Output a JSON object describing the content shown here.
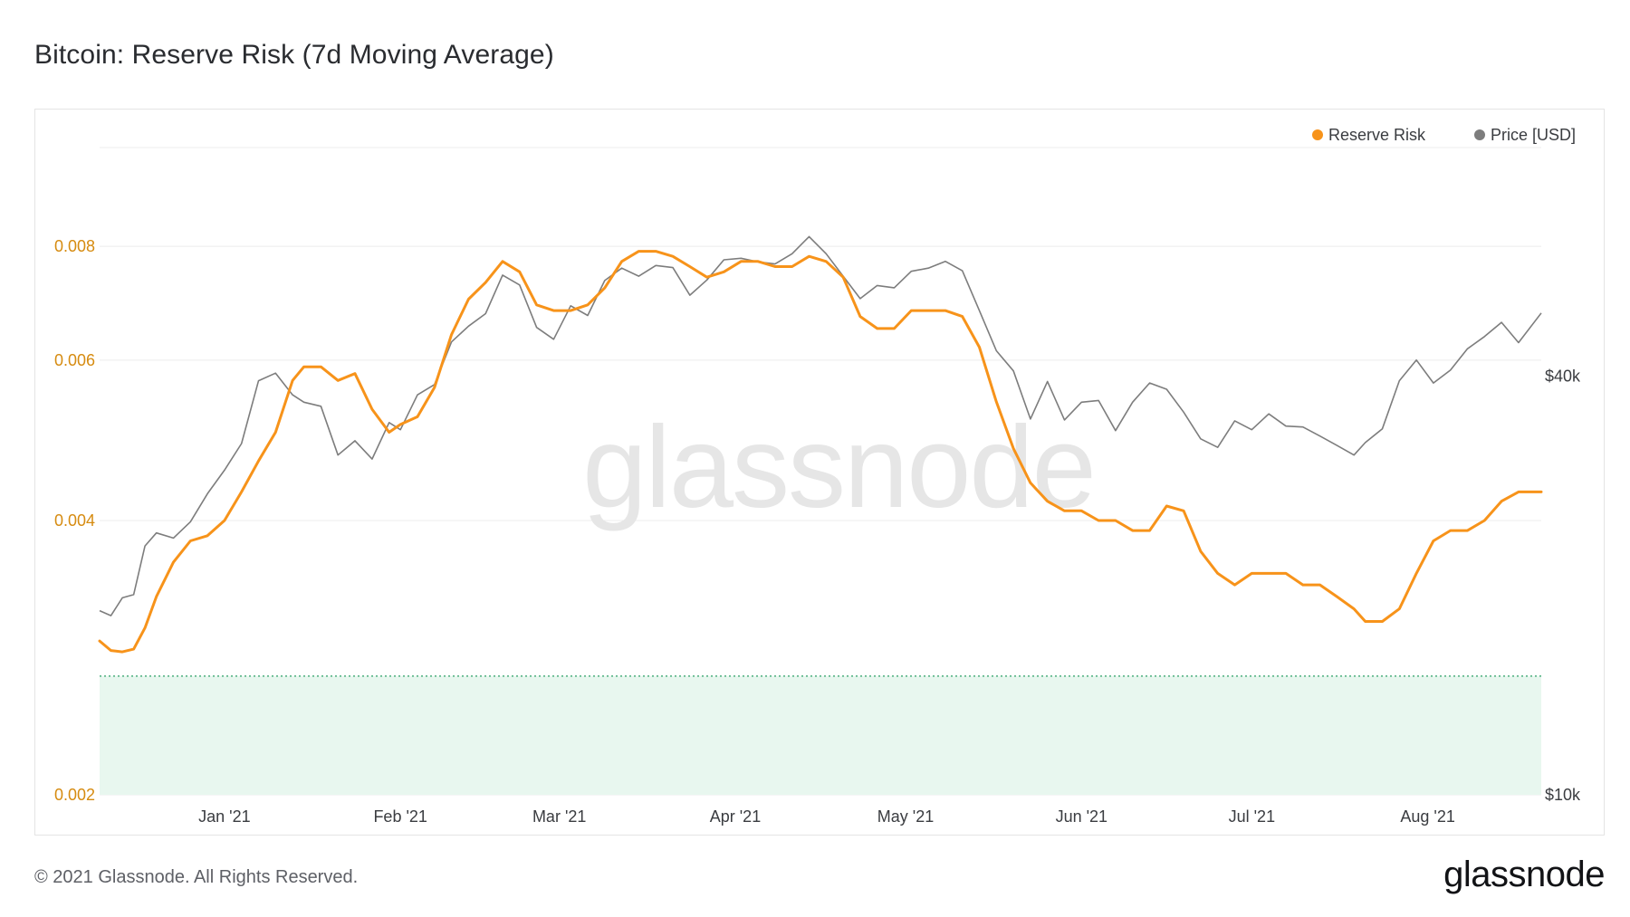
{
  "title": "Bitcoin: Reserve Risk (7d Moving Average)",
  "footer": {
    "copyright": "© 2021 Glassnode. All Rights Reserved.",
    "logo": "glassnode"
  },
  "watermark": "glassnode",
  "colors": {
    "reserve_risk": "#f7931a",
    "price": "#7d7d7d",
    "green_zone": "#e8f7ef",
    "green_zone_line": "#4caf7d",
    "left_axis": "#d68b10",
    "grid": "#ececec"
  },
  "chart_data": {
    "type": "line",
    "title": "Bitcoin: Reserve Risk (7d Moving Average)",
    "x_range": [
      "2020-12-10",
      "2021-08-21"
    ],
    "x_ticks": [
      {
        "label": "Jan '21",
        "date": "2021-01-01"
      },
      {
        "label": "Feb '21",
        "date": "2021-02-01"
      },
      {
        "label": "Mar '21",
        "date": "2021-03-01"
      },
      {
        "label": "Apr '21",
        "date": "2021-04-01"
      },
      {
        "label": "May '21",
        "date": "2021-05-01"
      },
      {
        "label": "Jun '21",
        "date": "2021-06-01"
      },
      {
        "label": "Jul '21",
        "date": "2021-07-01"
      },
      {
        "label": "Aug '21",
        "date": "2021-08-01"
      }
    ],
    "y_left": {
      "scale": "log",
      "ticks": [
        "0.002",
        "0.004",
        "0.006",
        "0.008"
      ],
      "range": [
        0.002,
        0.0107
      ]
    },
    "y_right": {
      "scale": "log",
      "ticks": [
        "$10k",
        "$40k"
      ],
      "range": [
        10000,
        90000
      ]
    },
    "legend": [
      {
        "name": "Reserve Risk",
        "color": "#f7931a"
      },
      {
        "name": "Price [USD]",
        "color": "#7d7d7d"
      }
    ],
    "green_zone": {
      "from": 0.002,
      "to": 0.0027
    },
    "series": [
      {
        "name": "Reserve Risk",
        "axis": "left",
        "points": [
          [
            "2020-12-10",
            0.00295
          ],
          [
            "2020-12-12",
            0.00288
          ],
          [
            "2020-12-14",
            0.00287
          ],
          [
            "2020-12-16",
            0.00289
          ],
          [
            "2020-12-18",
            0.00305
          ],
          [
            "2020-12-20",
            0.0033
          ],
          [
            "2020-12-23",
            0.0036
          ],
          [
            "2020-12-26",
            0.0038
          ],
          [
            "2020-12-29",
            0.00385
          ],
          [
            "2021-01-01",
            0.004
          ],
          [
            "2021-01-04",
            0.0043
          ],
          [
            "2021-01-07",
            0.00465
          ],
          [
            "2021-01-10",
            0.005
          ],
          [
            "2021-01-13",
            0.0057
          ],
          [
            "2021-01-15",
            0.0059
          ],
          [
            "2021-01-18",
            0.0059
          ],
          [
            "2021-01-21",
            0.0057
          ],
          [
            "2021-01-24",
            0.0058
          ],
          [
            "2021-01-27",
            0.0053
          ],
          [
            "2021-01-30",
            0.005
          ],
          [
            "2021-02-01",
            0.0051
          ],
          [
            "2021-02-04",
            0.0052
          ],
          [
            "2021-02-07",
            0.0056
          ],
          [
            "2021-02-10",
            0.0064
          ],
          [
            "2021-02-13",
            0.007
          ],
          [
            "2021-02-16",
            0.0073
          ],
          [
            "2021-02-19",
            0.0077
          ],
          [
            "2021-02-22",
            0.0075
          ],
          [
            "2021-02-25",
            0.0069
          ],
          [
            "2021-02-28",
            0.0068
          ],
          [
            "2021-03-03",
            0.0068
          ],
          [
            "2021-03-06",
            0.0069
          ],
          [
            "2021-03-09",
            0.0072
          ],
          [
            "2021-03-12",
            0.0077
          ],
          [
            "2021-03-15",
            0.0079
          ],
          [
            "2021-03-18",
            0.0079
          ],
          [
            "2021-03-21",
            0.0078
          ],
          [
            "2021-03-24",
            0.0076
          ],
          [
            "2021-03-27",
            0.0074
          ],
          [
            "2021-03-30",
            0.0075
          ],
          [
            "2021-04-02",
            0.0077
          ],
          [
            "2021-04-05",
            0.0077
          ],
          [
            "2021-04-08",
            0.0076
          ],
          [
            "2021-04-11",
            0.0076
          ],
          [
            "2021-04-14",
            0.0078
          ],
          [
            "2021-04-17",
            0.0077
          ],
          [
            "2021-04-20",
            0.0074
          ],
          [
            "2021-04-23",
            0.0067
          ],
          [
            "2021-04-26",
            0.0065
          ],
          [
            "2021-04-29",
            0.0065
          ],
          [
            "2021-05-02",
            0.0068
          ],
          [
            "2021-05-05",
            0.0068
          ],
          [
            "2021-05-08",
            0.0068
          ],
          [
            "2021-05-11",
            0.0067
          ],
          [
            "2021-05-14",
            0.0062
          ],
          [
            "2021-05-17",
            0.0054
          ],
          [
            "2021-05-20",
            0.0048
          ],
          [
            "2021-05-23",
            0.0044
          ],
          [
            "2021-05-26",
            0.0042
          ],
          [
            "2021-05-29",
            0.0041
          ],
          [
            "2021-06-01",
            0.0041
          ],
          [
            "2021-06-04",
            0.004
          ],
          [
            "2021-06-07",
            0.004
          ],
          [
            "2021-06-10",
            0.0039
          ],
          [
            "2021-06-13",
            0.0039
          ],
          [
            "2021-06-16",
            0.00415
          ],
          [
            "2021-06-19",
            0.0041
          ],
          [
            "2021-06-22",
            0.0037
          ],
          [
            "2021-06-25",
            0.0035
          ],
          [
            "2021-06-28",
            0.0034
          ],
          [
            "2021-07-01",
            0.0035
          ],
          [
            "2021-07-04",
            0.0035
          ],
          [
            "2021-07-07",
            0.0035
          ],
          [
            "2021-07-10",
            0.0034
          ],
          [
            "2021-07-13",
            0.0034
          ],
          [
            "2021-07-16",
            0.0033
          ],
          [
            "2021-07-19",
            0.0032
          ],
          [
            "2021-07-21",
            0.0031
          ],
          [
            "2021-07-24",
            0.0031
          ],
          [
            "2021-07-27",
            0.0032
          ],
          [
            "2021-07-30",
            0.0035
          ],
          [
            "2021-08-02",
            0.0038
          ],
          [
            "2021-08-05",
            0.0039
          ],
          [
            "2021-08-08",
            0.0039
          ],
          [
            "2021-08-11",
            0.004
          ],
          [
            "2021-08-14",
            0.0042
          ],
          [
            "2021-08-17",
            0.0043
          ],
          [
            "2021-08-21",
            0.0043
          ]
        ]
      },
      {
        "name": "Price [USD]",
        "axis": "right",
        "points": [
          [
            "2020-12-10",
            18400
          ],
          [
            "2020-12-12",
            18100
          ],
          [
            "2020-12-14",
            19200
          ],
          [
            "2020-12-16",
            19400
          ],
          [
            "2020-12-18",
            22800
          ],
          [
            "2020-12-20",
            23800
          ],
          [
            "2020-12-23",
            23400
          ],
          [
            "2020-12-26",
            24700
          ],
          [
            "2020-12-29",
            27100
          ],
          [
            "2021-01-01",
            29300
          ],
          [
            "2021-01-04",
            32000
          ],
          [
            "2021-01-07",
            39400
          ],
          [
            "2021-01-10",
            40400
          ],
          [
            "2021-01-13",
            37600
          ],
          [
            "2021-01-15",
            36700
          ],
          [
            "2021-01-18",
            36200
          ],
          [
            "2021-01-21",
            30800
          ],
          [
            "2021-01-24",
            32300
          ],
          [
            "2021-01-27",
            30400
          ],
          [
            "2021-01-30",
            34300
          ],
          [
            "2021-02-01",
            33500
          ],
          [
            "2021-02-04",
            37600
          ],
          [
            "2021-02-07",
            38900
          ],
          [
            "2021-02-10",
            44800
          ],
          [
            "2021-02-13",
            47200
          ],
          [
            "2021-02-16",
            49200
          ],
          [
            "2021-02-19",
            55900
          ],
          [
            "2021-02-22",
            54100
          ],
          [
            "2021-02-25",
            47000
          ],
          [
            "2021-02-28",
            45200
          ],
          [
            "2021-03-03",
            50500
          ],
          [
            "2021-03-06",
            48900
          ],
          [
            "2021-03-09",
            54900
          ],
          [
            "2021-03-12",
            57200
          ],
          [
            "2021-03-15",
            55700
          ],
          [
            "2021-03-18",
            57700
          ],
          [
            "2021-03-21",
            57300
          ],
          [
            "2021-03-24",
            52300
          ],
          [
            "2021-03-27",
            55000
          ],
          [
            "2021-03-30",
            58800
          ],
          [
            "2021-04-02",
            59100
          ],
          [
            "2021-04-05",
            58400
          ],
          [
            "2021-04-08",
            58000
          ],
          [
            "2021-04-11",
            60000
          ],
          [
            "2021-04-14",
            63500
          ],
          [
            "2021-04-17",
            60000
          ],
          [
            "2021-04-20",
            55700
          ],
          [
            "2021-04-23",
            51700
          ],
          [
            "2021-04-26",
            54000
          ],
          [
            "2021-04-29",
            53600
          ],
          [
            "2021-05-02",
            56600
          ],
          [
            "2021-05-05",
            57200
          ],
          [
            "2021-05-08",
            58500
          ],
          [
            "2021-05-11",
            56700
          ],
          [
            "2021-05-14",
            49700
          ],
          [
            "2021-05-17",
            43500
          ],
          [
            "2021-05-20",
            40700
          ],
          [
            "2021-05-23",
            34700
          ],
          [
            "2021-05-26",
            39300
          ],
          [
            "2021-05-29",
            34600
          ],
          [
            "2021-06-01",
            36700
          ],
          [
            "2021-06-04",
            36900
          ],
          [
            "2021-06-07",
            33400
          ],
          [
            "2021-06-10",
            36700
          ],
          [
            "2021-06-13",
            39100
          ],
          [
            "2021-06-16",
            38300
          ],
          [
            "2021-06-19",
            35500
          ],
          [
            "2021-06-22",
            32500
          ],
          [
            "2021-06-25",
            31600
          ],
          [
            "2021-06-28",
            34500
          ],
          [
            "2021-07-01",
            33500
          ],
          [
            "2021-07-04",
            35300
          ],
          [
            "2021-07-07",
            33900
          ],
          [
            "2021-07-10",
            33800
          ],
          [
            "2021-07-13",
            32800
          ],
          [
            "2021-07-16",
            31800
          ],
          [
            "2021-07-19",
            30800
          ],
          [
            "2021-07-21",
            32100
          ],
          [
            "2021-07-24",
            33600
          ],
          [
            "2021-07-27",
            39400
          ],
          [
            "2021-07-30",
            42200
          ],
          [
            "2021-08-02",
            39100
          ],
          [
            "2021-08-05",
            40800
          ],
          [
            "2021-08-08",
            43800
          ],
          [
            "2021-08-11",
            45600
          ],
          [
            "2021-08-14",
            47800
          ],
          [
            "2021-08-17",
            44700
          ],
          [
            "2021-08-21",
            49300
          ]
        ]
      }
    ]
  }
}
